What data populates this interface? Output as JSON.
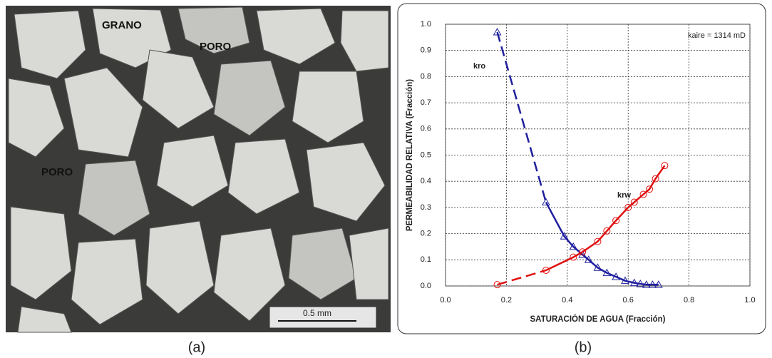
{
  "micrograph": {
    "labels": [
      "GRANO",
      "PORO",
      "PORO"
    ],
    "scale_bar": "0.5 mm",
    "caption": "(a)"
  },
  "chart_caption": "(b)",
  "chart_data": {
    "type": "line",
    "x_label": "SATURACIÓN DE AGUA (Fracción)",
    "y_label": "PERMEABILIDAD RELATIVA (Fracción)",
    "annotation": "kaire = 1314 mD",
    "series": [
      {
        "name": "kro",
        "color": "#1f1f9e",
        "marker": "triangle",
        "x": [
          0.17,
          0.33,
          0.39,
          0.42,
          0.45,
          0.47,
          0.5,
          0.53,
          0.56,
          0.59,
          0.62,
          0.64,
          0.66,
          0.68,
          0.7
        ],
        "values": [
          0.97,
          0.32,
          0.19,
          0.15,
          0.12,
          0.1,
          0.07,
          0.05,
          0.035,
          0.02,
          0.012,
          0.008,
          0.005,
          0.005,
          0.005
        ]
      },
      {
        "name": "krw",
        "color": "#e01010",
        "marker": "circle",
        "x": [
          0.17,
          0.33,
          0.42,
          0.45,
          0.5,
          0.53,
          0.56,
          0.6,
          0.62,
          0.65,
          0.67,
          0.69,
          0.72
        ],
        "values": [
          0.005,
          0.06,
          0.11,
          0.13,
          0.17,
          0.21,
          0.25,
          0.3,
          0.32,
          0.35,
          0.37,
          0.41,
          0.46
        ]
      }
    ],
    "xlim": [
      0,
      1
    ],
    "ylim": [
      0,
      1
    ],
    "xticks": [
      {
        "value": 0,
        "label": "0.0"
      },
      0.2,
      0.4,
      0.6,
      0.8,
      {
        "value": 1,
        "label": "1.0"
      }
    ],
    "yticks": [
      {
        "value": 0,
        "label": "0.0"
      },
      0.1,
      0.2,
      0.3,
      0.4,
      0.5,
      0.6,
      0.7,
      0.8,
      0.9,
      {
        "value": 1,
        "label": "1.0"
      }
    ],
    "grid": true
  }
}
